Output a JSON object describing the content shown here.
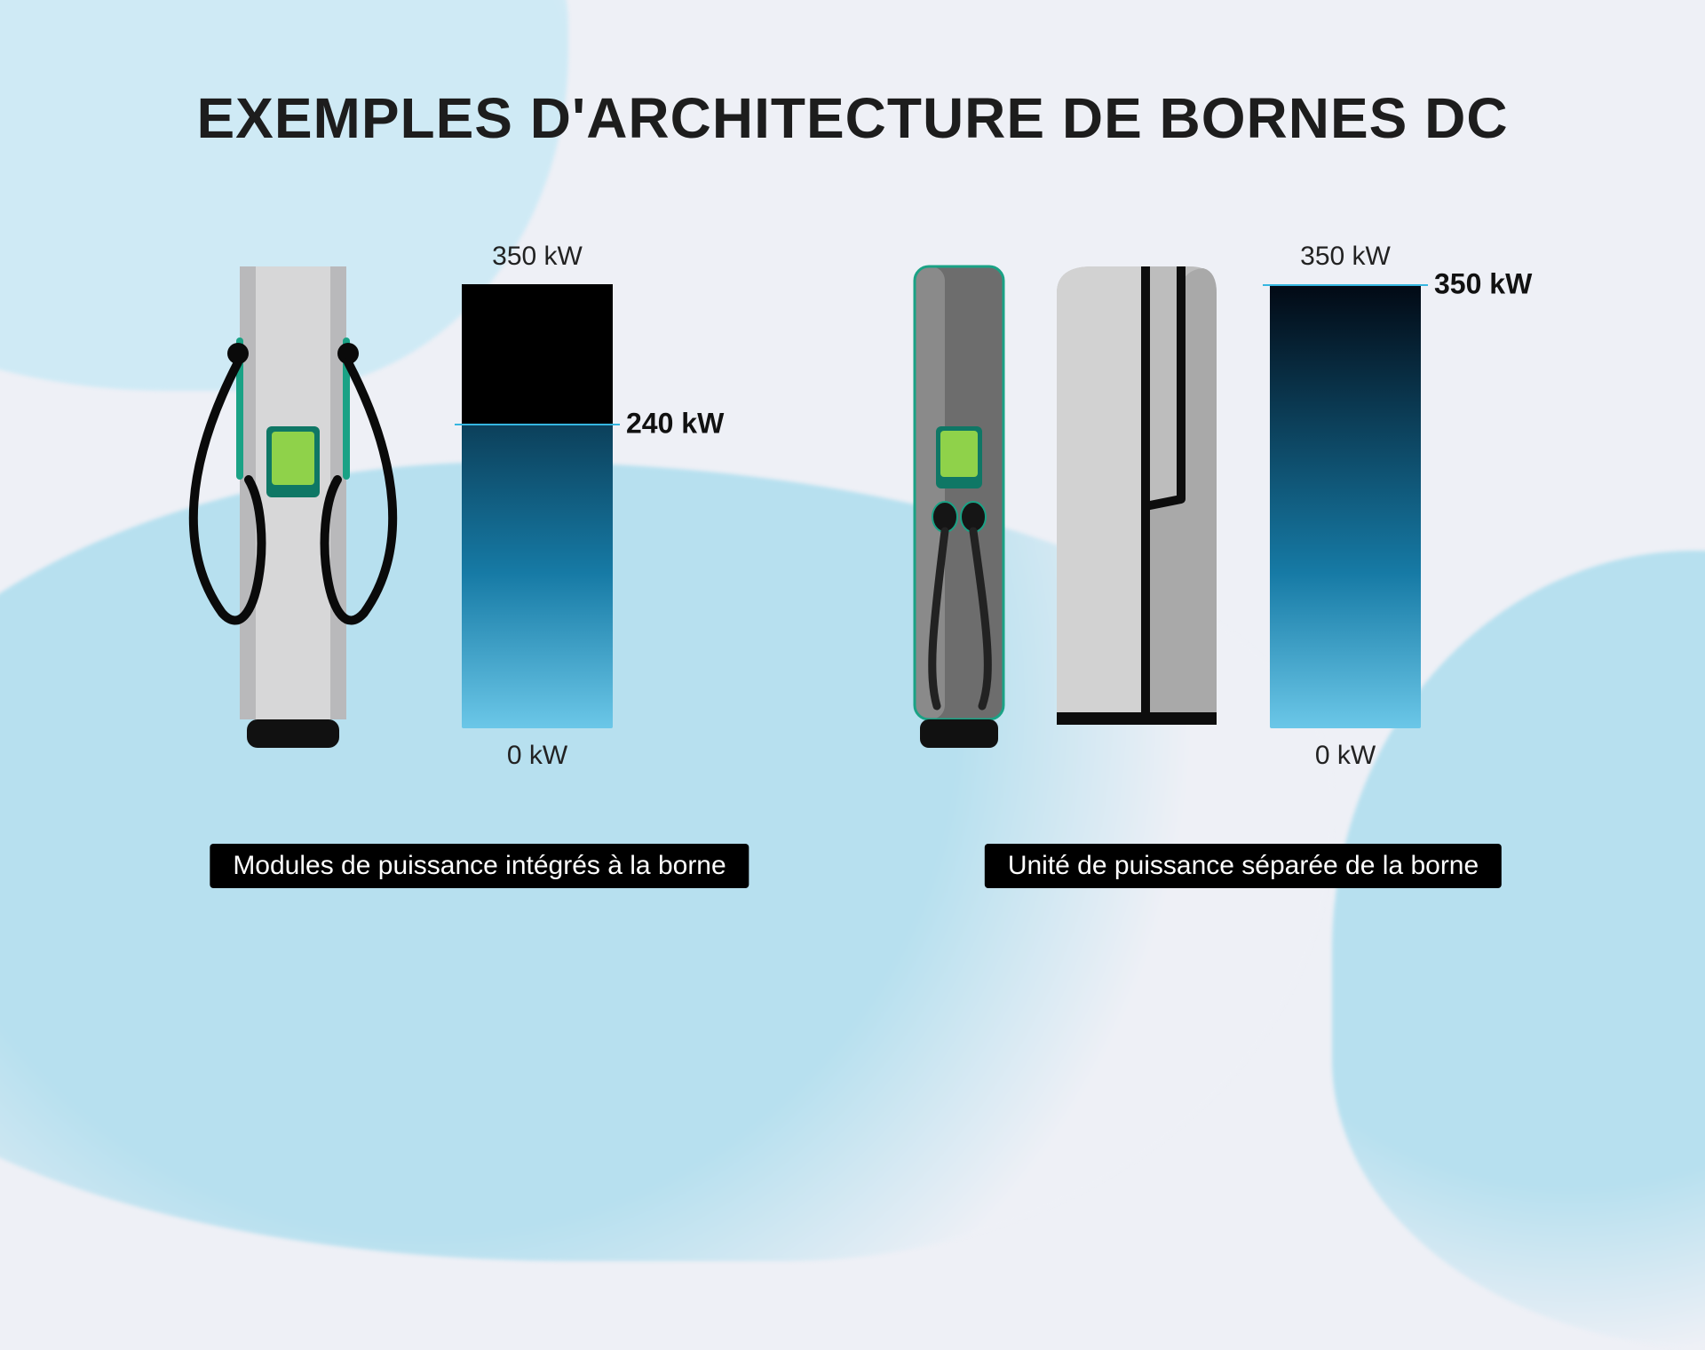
{
  "title": "EXEMPLES D'ARCHITECTURE DE BORNES DC",
  "left": {
    "caption": "Modules de puissance intégrés à la borne",
    "gauge": {
      "max_kw": 350,
      "min_kw": 0,
      "max_label": "350 kW",
      "min_label": "0 kW",
      "mark_kw": 240,
      "mark_label": "240 kW"
    },
    "colors": {
      "body": "#d7d7d8",
      "body_edge": "#6f6f6f",
      "screen": "#8fd24a",
      "screen_border": "#1aa285",
      "trim": "#1aa285",
      "base": "#111111",
      "cable": "#0a0a0a"
    }
  },
  "right": {
    "caption": "Unité de puissance séparée de la borne",
    "gauge": {
      "max_kw": 350,
      "min_kw": 0,
      "max_label": "350 kW",
      "min_label": "0 kW",
      "mark_kw": 350,
      "mark_label": "350 kW"
    },
    "colors": {
      "body": "#6d6d6d",
      "body_hl": "#9a9a9a",
      "screen": "#8fd24a",
      "screen_border": "#1aa285",
      "trim": "#1aa285",
      "base": "#111111",
      "unit_body": "#bdbdbd",
      "unit_edge": "#0d0d0d",
      "cable": "#222222"
    }
  },
  "style": {
    "gauge_gradient_top": "#020914",
    "gauge_gradient_mid": "#167aa5",
    "gauge_gradient_bottom": "#6bc7e8",
    "mark_line_color": "#36b6e0",
    "title_color": "#1d1d1d",
    "caption_bg": "#000000",
    "caption_fg": "#ffffff",
    "page_bg": "#eef0f6",
    "wave_bg": "#b7e0ef",
    "title_fontsize": 64,
    "caption_fontsize": 30,
    "gauge_label_fontsize": 30,
    "mark_fontsize": 32
  }
}
